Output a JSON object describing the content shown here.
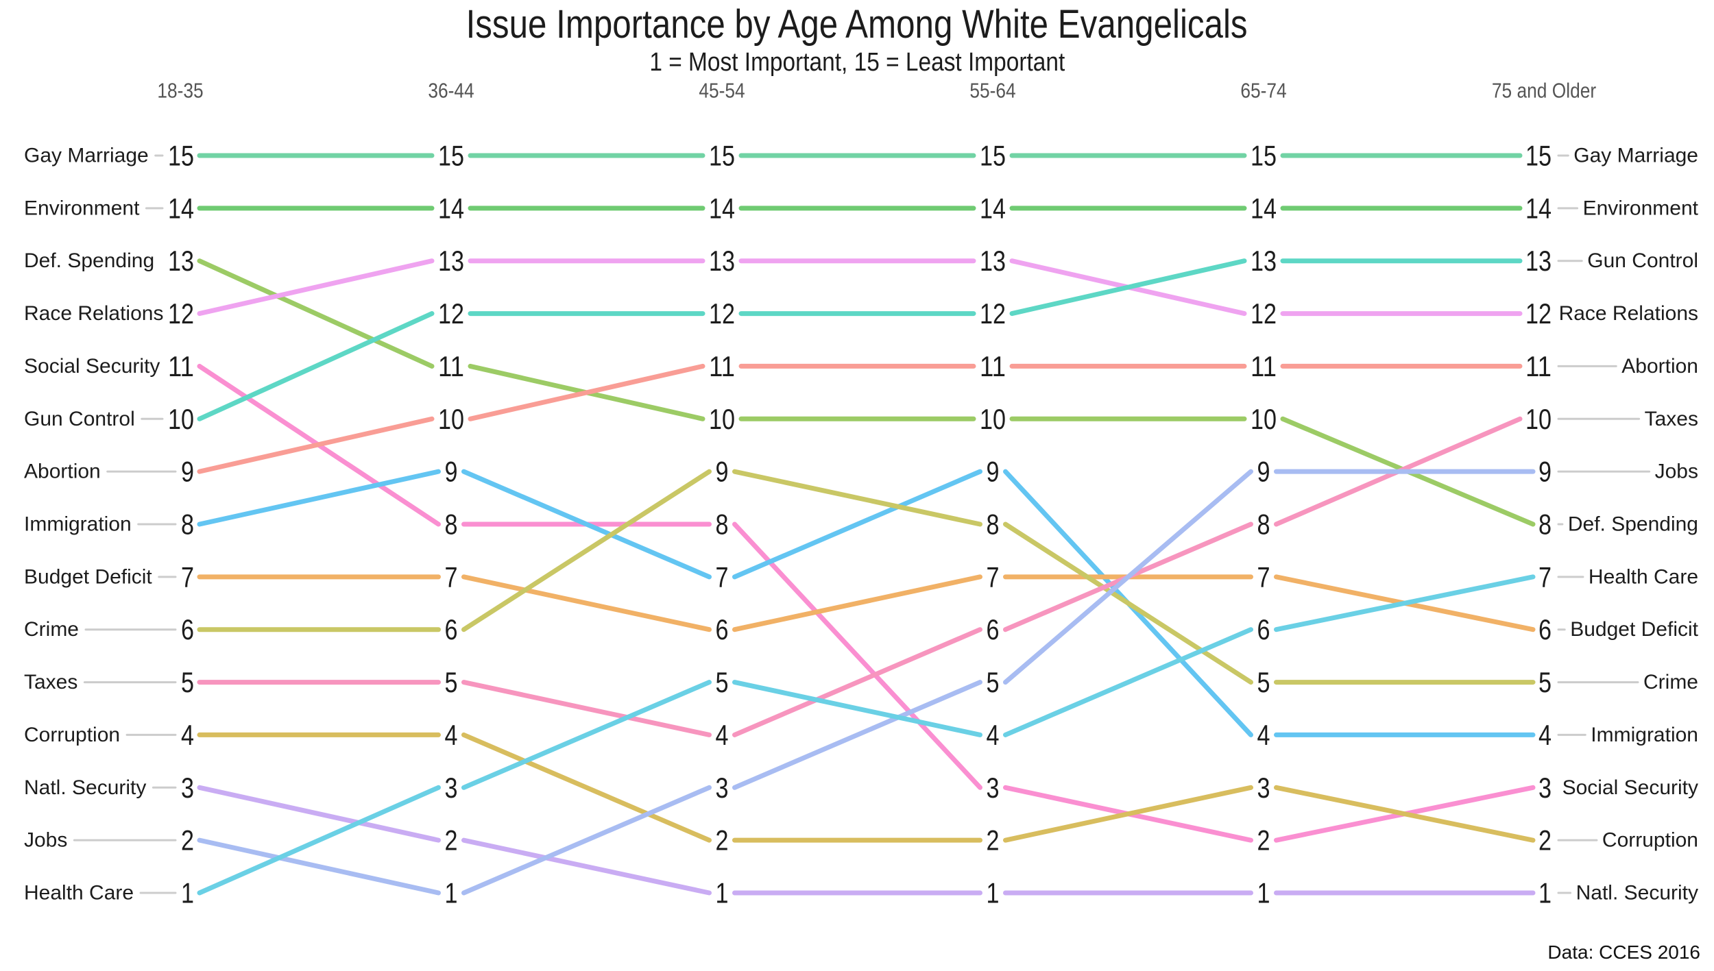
{
  "title": "Issue Importance by Age Among White Evangelicals",
  "subtitle": "1 = Most Important, 15 = Least Important",
  "footer": "Data: CCES 2016",
  "colors": {
    "background": "#ffffff",
    "header_text": "#555555",
    "number_text": "#1c1c1c",
    "label_text": "#1c1c1c",
    "leader_line": "#cccccc"
  },
  "chart_data": {
    "type": "line",
    "subtype": "bump-chart",
    "rank_note": "1 = Most Important, 15 = Least Important",
    "rank_range": [
      1,
      15
    ],
    "legend_position": "row-labels-left-and-right",
    "grid": false,
    "categories": [
      "18-35",
      "36-44",
      "45-54",
      "55-64",
      "65-74",
      "75 and Older"
    ],
    "series": [
      {
        "name": "Gay Marriage",
        "color": "#71d3a4",
        "values": [
          15,
          15,
          15,
          15,
          15,
          15
        ]
      },
      {
        "name": "Environment",
        "color": "#6fcb72",
        "values": [
          14,
          14,
          14,
          14,
          14,
          14
        ]
      },
      {
        "name": "Def. Spending",
        "color": "#9ccb65",
        "values": [
          13,
          11,
          10,
          10,
          10,
          8
        ]
      },
      {
        "name": "Race Relations",
        "color": "#efa3f0",
        "values": [
          12,
          13,
          13,
          13,
          12,
          12
        ]
      },
      {
        "name": "Social Security",
        "color": "#fa8fd1",
        "values": [
          11,
          8,
          8,
          3,
          2,
          3
        ]
      },
      {
        "name": "Gun Control",
        "color": "#5dd7c5",
        "values": [
          10,
          12,
          12,
          12,
          13,
          13
        ]
      },
      {
        "name": "Abortion",
        "color": "#f99d95",
        "values": [
          9,
          10,
          11,
          11,
          11,
          11
        ]
      },
      {
        "name": "Immigration",
        "color": "#63c5f2",
        "values": [
          8,
          9,
          7,
          9,
          4,
          4
        ]
      },
      {
        "name": "Budget Deficit",
        "color": "#f1b166",
        "values": [
          7,
          7,
          6,
          7,
          7,
          6
        ]
      },
      {
        "name": "Crime",
        "color": "#c9c765",
        "values": [
          6,
          6,
          9,
          8,
          5,
          5
        ]
      },
      {
        "name": "Taxes",
        "color": "#f795be",
        "values": [
          5,
          5,
          4,
          6,
          8,
          10
        ]
      },
      {
        "name": "Corruption",
        "color": "#d8bd5e",
        "values": [
          4,
          4,
          2,
          2,
          3,
          2
        ]
      },
      {
        "name": "Natl. Security",
        "color": "#c9acf3",
        "values": [
          3,
          2,
          1,
          1,
          1,
          1
        ]
      },
      {
        "name": "Jobs",
        "color": "#a8bcf2",
        "values": [
          2,
          1,
          3,
          5,
          9,
          9
        ]
      },
      {
        "name": "Health Care",
        "color": "#6ad0e5",
        "values": [
          1,
          3,
          5,
          4,
          6,
          7
        ]
      }
    ]
  }
}
